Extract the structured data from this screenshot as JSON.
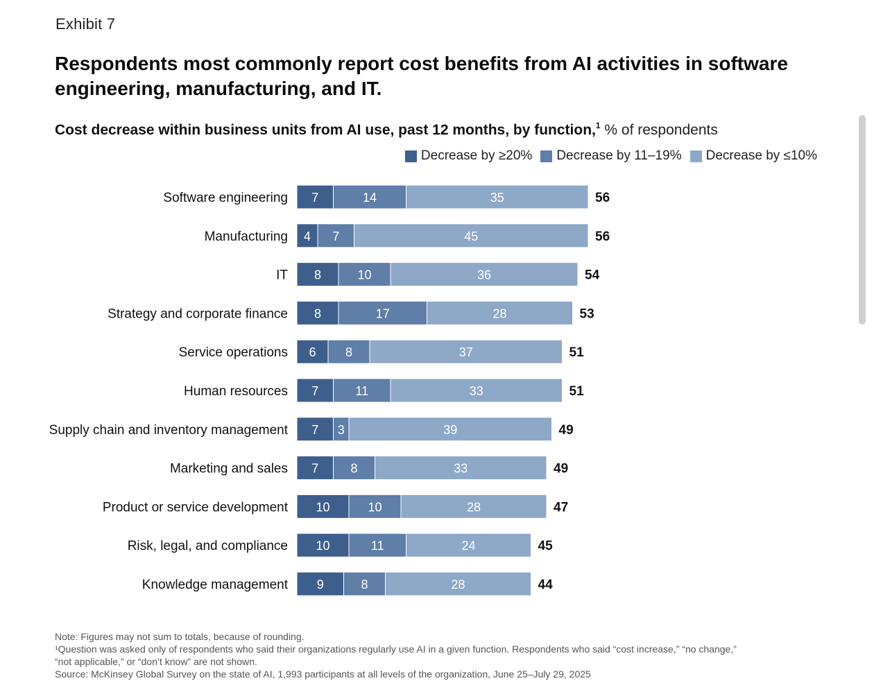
{
  "exhibit": "Exhibit 7",
  "title": "Respondents most commonly report cost benefits from AI activities in software engineering, manufacturing, and IT.",
  "subtitle": {
    "main": "Cost decrease within business units from AI use, past 12 months, by function,",
    "footnote_mark": "1",
    "unit": " % of respondents"
  },
  "colors": {
    "dark": "#3e5f8c",
    "mid": "#5f7ea8",
    "light": "#8ea8c8"
  },
  "legend": [
    {
      "label": "Decrease by ≥20%",
      "color": "#3e5f8c"
    },
    {
      "label": "Decrease by 11–19%",
      "color": "#5f7ea8"
    },
    {
      "label": "Decrease by ≤10%",
      "color": "#8ea8c8"
    }
  ],
  "chart_data": {
    "type": "bar",
    "orientation": "horizontal",
    "stacked": true,
    "categories": [
      "Software engineering",
      "Manufacturing",
      "IT",
      "Strategy and corporate finance",
      "Service operations",
      "Human resources",
      "Supply chain and inventory management",
      "Marketing and sales",
      "Product or service development",
      "Risk, legal, and compliance",
      "Knowledge management"
    ],
    "series": [
      {
        "name": "Decrease by ≥20%",
        "values": [
          7,
          4,
          8,
          8,
          6,
          7,
          7,
          7,
          10,
          10,
          9
        ]
      },
      {
        "name": "Decrease by 11–19%",
        "values": [
          14,
          7,
          10,
          17,
          8,
          11,
          3,
          8,
          10,
          11,
          8
        ]
      },
      {
        "name": "Decrease by ≤10%",
        "values": [
          35,
          45,
          36,
          28,
          37,
          33,
          39,
          33,
          28,
          24,
          28
        ]
      }
    ],
    "totals": [
      56,
      56,
      54,
      53,
      51,
      51,
      49,
      49,
      47,
      45,
      44
    ],
    "legend_position": "top-right",
    "grid": false
  },
  "notes": [
    "Note: Figures may not sum to totals, because of rounding.",
    "¹Question was asked only of respondents who said their organizations regularly use AI in a given function. Respondents who said “cost increase,” “no change,”\n“not applicable,” or “don’t know” are not shown.",
    "Source: McKinsey Global Survey on the state of AI, 1,993 participants at all levels of the organization, June 25–July 29, 2025"
  ]
}
